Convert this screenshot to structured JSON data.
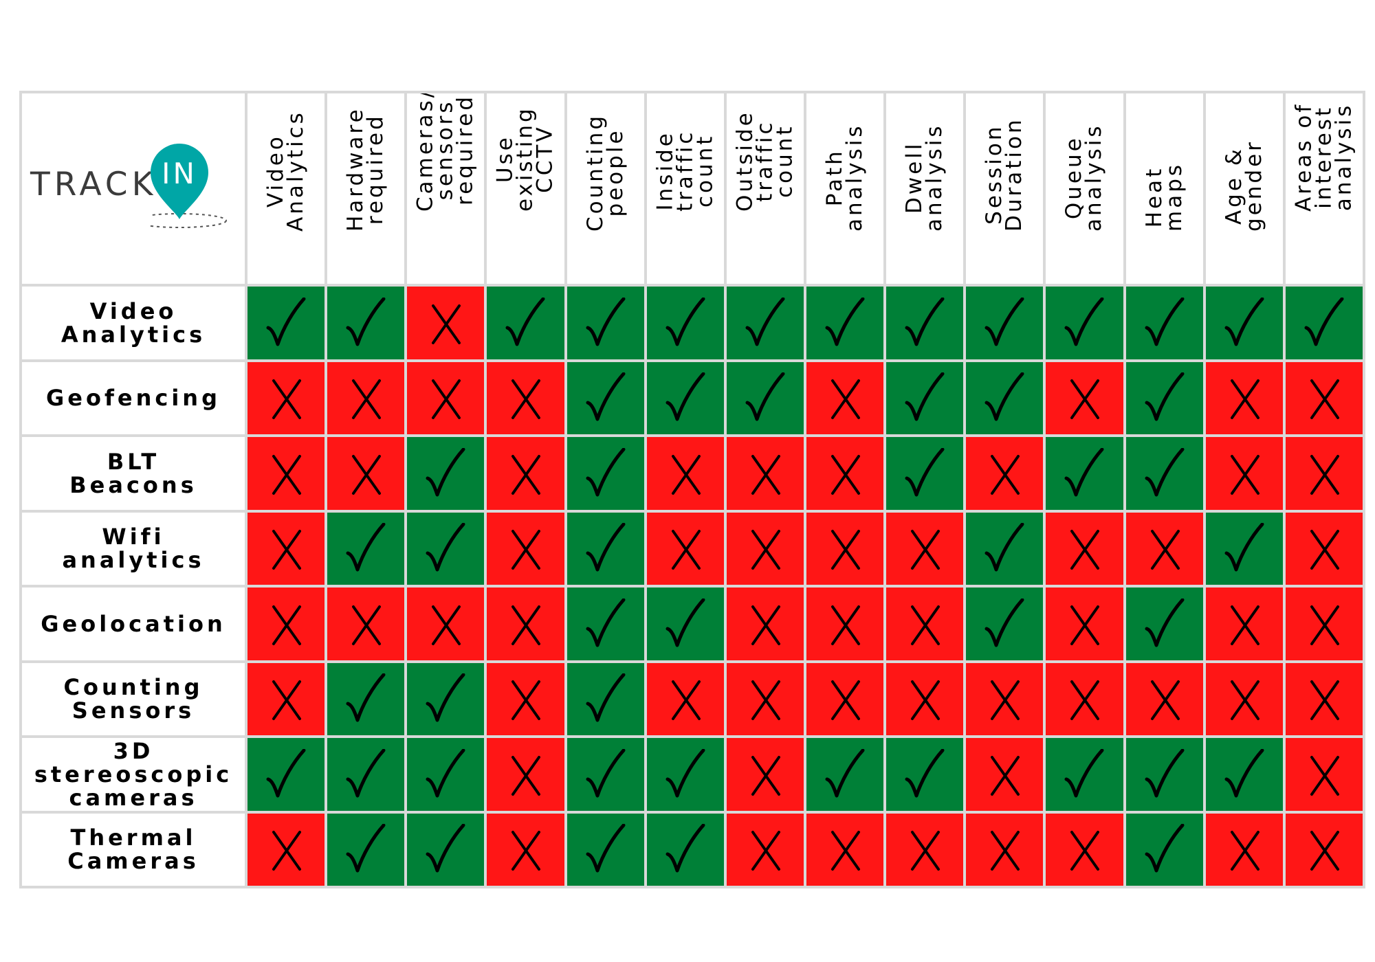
{
  "logo": {
    "text": "TRACK",
    "pin_text": "IN",
    "brand_color": "#00a6a6"
  },
  "colors": {
    "yes": "#008037",
    "no": "#ff1616",
    "grid": "#d9d9d9"
  },
  "columns": [
    "Video\nAnalytics",
    "Hardware\nrequired",
    "Cameras/\nsensors\nrequired",
    "Use\nexisting\nCCTV",
    "Counting\npeople",
    "Inside\ntraffic\ncount",
    "Outside\ntraffic\ncount",
    "Path\nanalysis",
    "Dwell\nanalysis",
    "Session\nDuration",
    "Queue\nanalysis",
    "Heat\nmaps",
    "Age &\ngender",
    "Areas of\ninterest\nanalysis"
  ],
  "rows": [
    {
      "label": "Video\nAnalytics",
      "values": [
        "yes",
        "yes",
        "no",
        "yes",
        "yes",
        "yes",
        "yes",
        "yes",
        "yes",
        "yes",
        "yes",
        "yes",
        "yes",
        "yes"
      ]
    },
    {
      "label": "Geofencing",
      "values": [
        "no",
        "no",
        "no",
        "no",
        "yes",
        "yes",
        "yes",
        "no",
        "yes",
        "yes",
        "no",
        "yes",
        "no",
        "no"
      ]
    },
    {
      "label": "BLT\nBeacons",
      "values": [
        "no",
        "no",
        "yes",
        "no",
        "yes",
        "no",
        "no",
        "no",
        "yes",
        "no",
        "yes",
        "yes",
        "no",
        "no"
      ]
    },
    {
      "label": "Wifi\nanalytics",
      "values": [
        "no",
        "yes",
        "yes",
        "no",
        "yes",
        "no",
        "no",
        "no",
        "no",
        "yes",
        "no",
        "no",
        "yes",
        "no"
      ]
    },
    {
      "label": "Geolocation",
      "values": [
        "no",
        "no",
        "no",
        "no",
        "yes",
        "yes",
        "no",
        "no",
        "no",
        "yes",
        "no",
        "yes",
        "no",
        "no"
      ]
    },
    {
      "label": "Counting\nSensors",
      "values": [
        "no",
        "yes",
        "yes",
        "no",
        "yes",
        "no",
        "no",
        "no",
        "no",
        "no",
        "no",
        "no",
        "no",
        "no"
      ]
    },
    {
      "label": "3D\nstereoscopic\ncameras",
      "values": [
        "yes",
        "yes",
        "yes",
        "no",
        "yes",
        "yes",
        "no",
        "yes",
        "yes",
        "no",
        "yes",
        "yes",
        "yes",
        "no"
      ]
    },
    {
      "label": "Thermal\nCameras",
      "values": [
        "no",
        "yes",
        "yes",
        "no",
        "yes",
        "yes",
        "no",
        "no",
        "no",
        "no",
        "no",
        "yes",
        "no",
        "no"
      ]
    }
  ]
}
